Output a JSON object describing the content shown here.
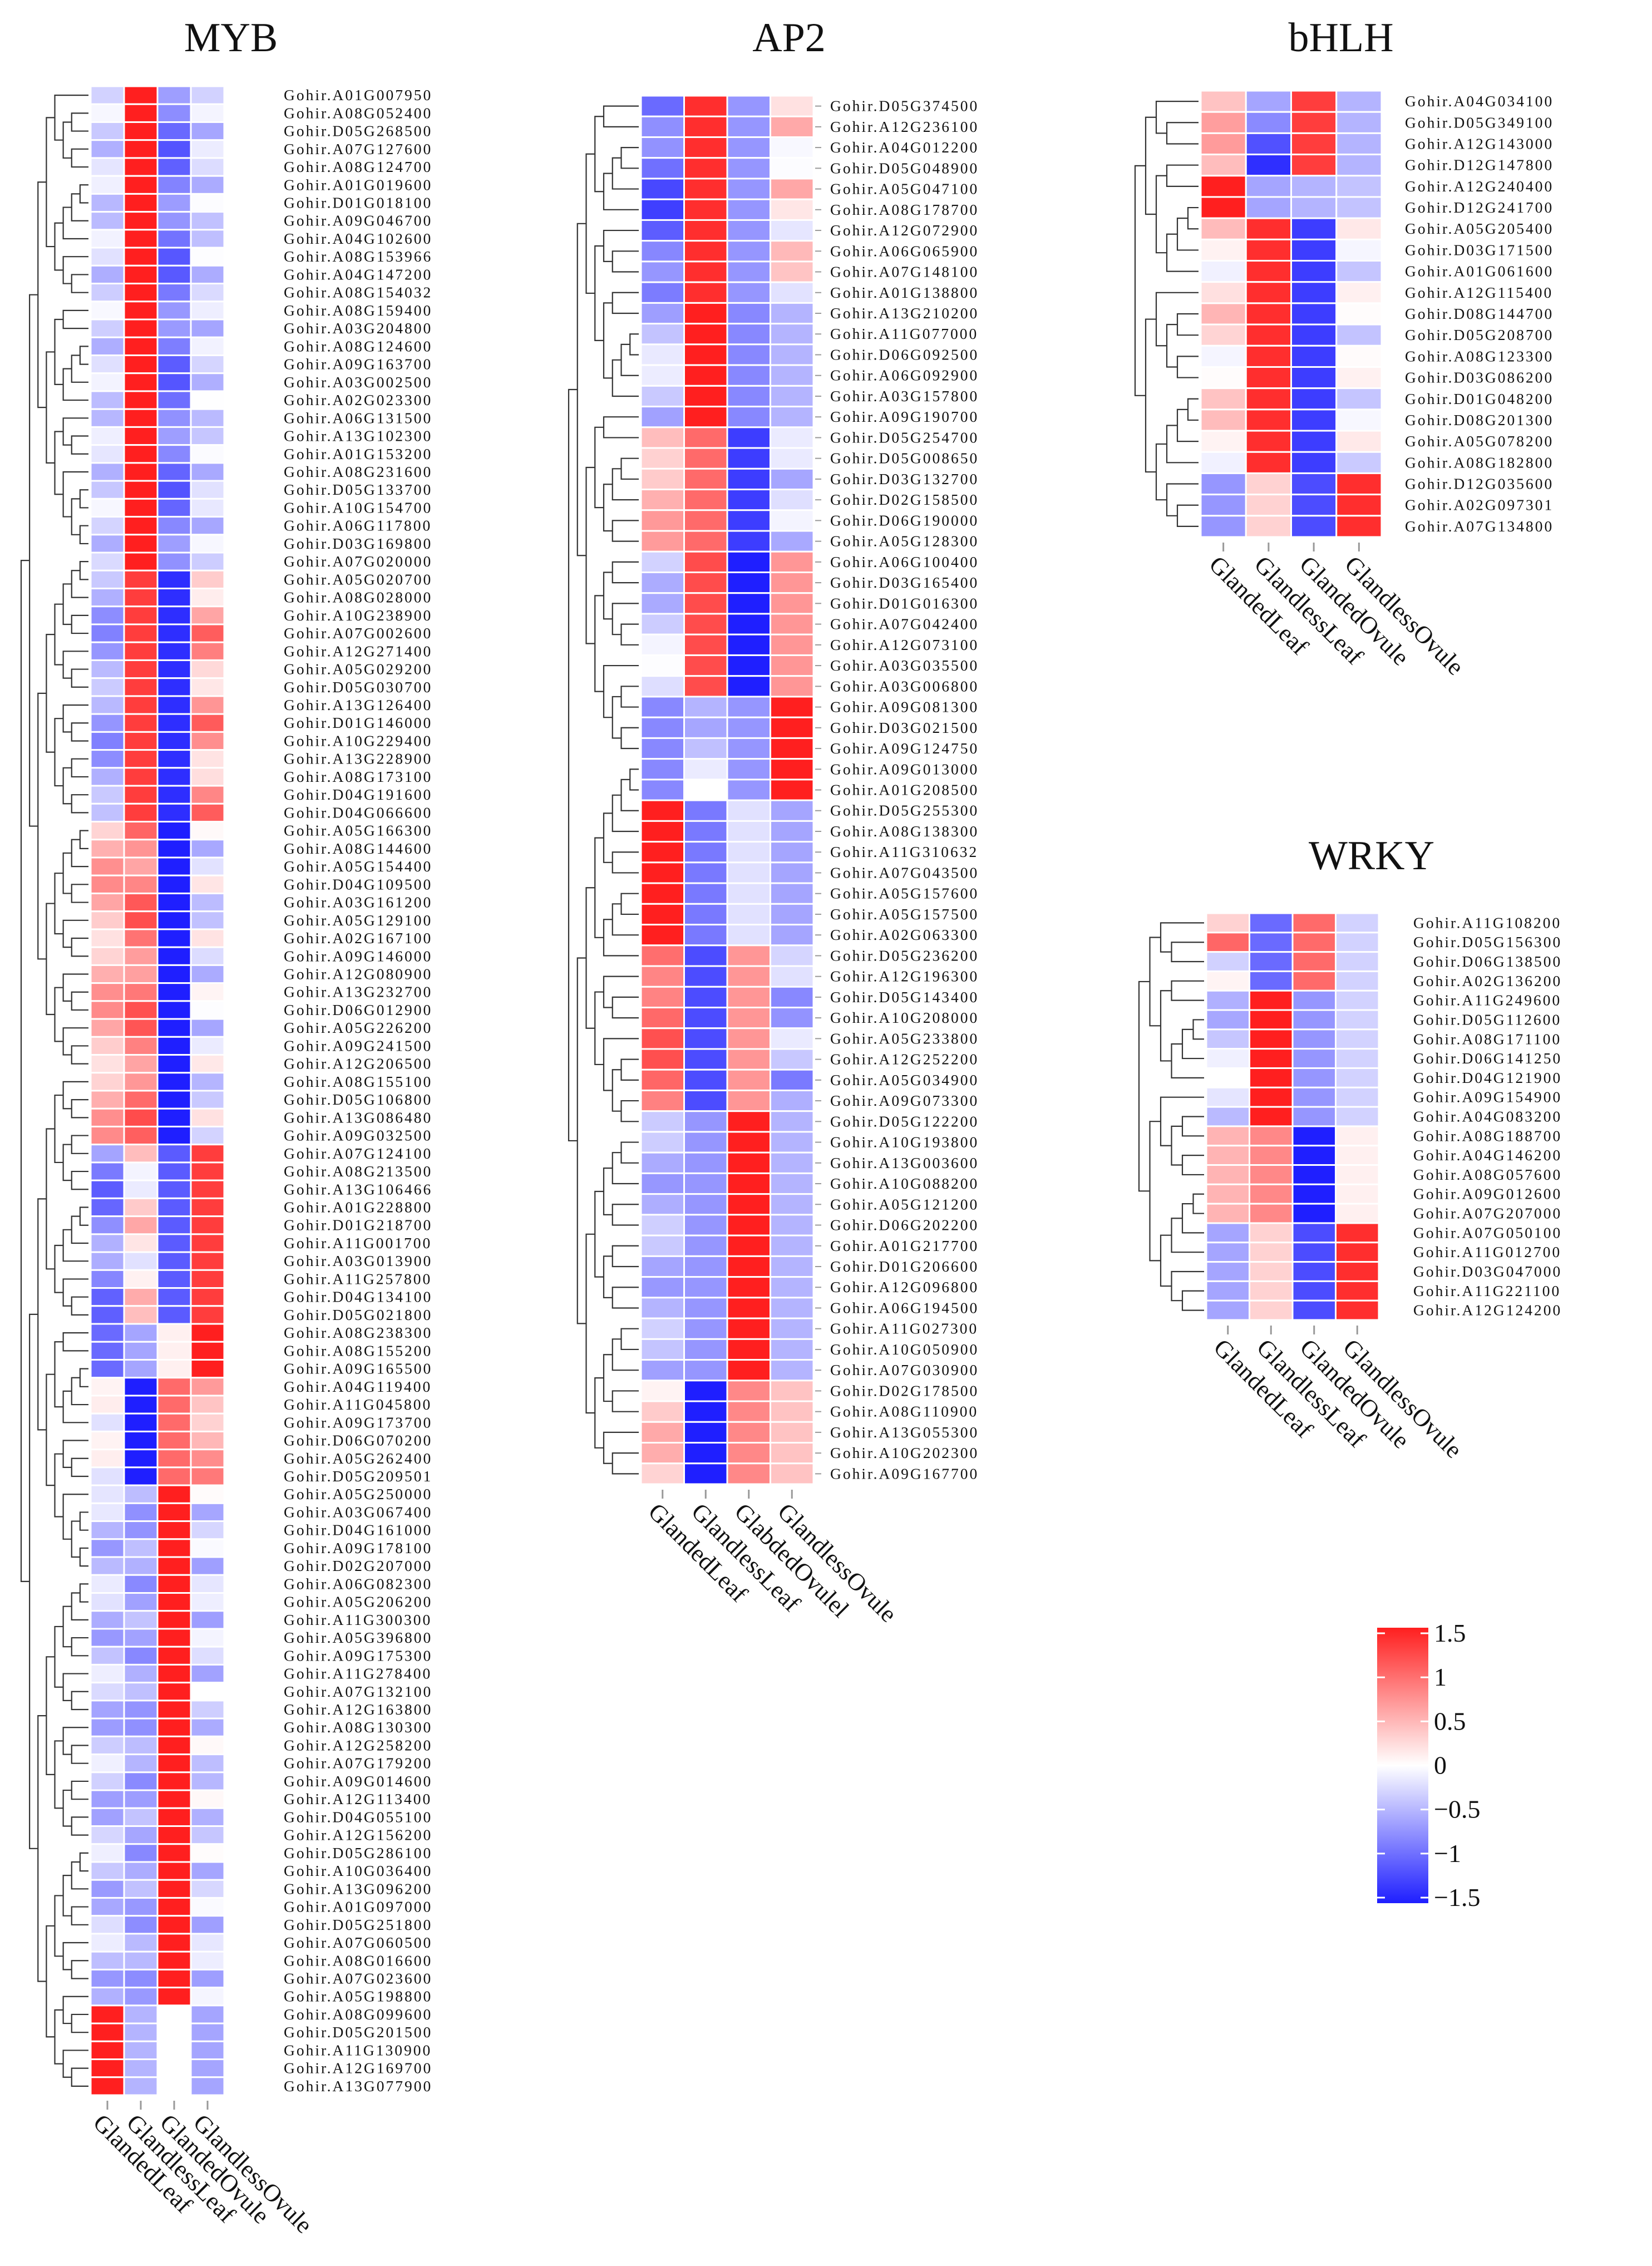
{
  "colors": {
    "low": "#1f1fff",
    "mid": "#ffffff",
    "high": "#ff1f1f",
    "cell_border": "#ffffff",
    "line": "#333333"
  },
  "chart_data": [
    {
      "type": "heatmap",
      "title": "MYB",
      "columns": [
        "GlandedLeaf",
        "GlandlessLeaf",
        "GlandedOvule",
        "GlandlessOvule"
      ],
      "rows": [
        "Gohir.A01G007950",
        "Gohir.A08G052400",
        "Gohir.D05G268500",
        "Gohir.A07G127600",
        "Gohir.A08G124700",
        "Gohir.A01G019600",
        "Gohir.D01G018100",
        "Gohir.A09G046700",
        "Gohir.A04G102600",
        "Gohir.A08G153966",
        "Gohir.A04G147200",
        "Gohir.A08G154032",
        "Gohir.A08G159400",
        "Gohir.A03G204800",
        "Gohir.A08G124600",
        "Gohir.A09G163700",
        "Gohir.A03G002500",
        "Gohir.A02G023300",
        "Gohir.A06G131500",
        "Gohir.A13G102300",
        "Gohir.A01G153200",
        "Gohir.A08G231600",
        "Gohir.D05G133700",
        "Gohir.A10G154700",
        "Gohir.A06G117800",
        "Gohir.D03G169800",
        "Gohir.A07G020000",
        "Gohir.A05G020700",
        "Gohir.A08G028000",
        "Gohir.A10G238900",
        "Gohir.A07G002600",
        "Gohir.A12G271400",
        "Gohir.A05G029200",
        "Gohir.D05G030700",
        "Gohir.A13G126400",
        "Gohir.D01G146000",
        "Gohir.A10G229400",
        "Gohir.A13G228900",
        "Gohir.A08G173100",
        "Gohir.D04G191600",
        "Gohir.D04G066600",
        "Gohir.A05G166300",
        "Gohir.A08G144600",
        "Gohir.A05G154400",
        "Gohir.D04G109500",
        "Gohir.A03G161200",
        "Gohir.A05G129100",
        "Gohir.A02G167100",
        "Gohir.A09G146000",
        "Gohir.A12G080900",
        "Gohir.A13G232700",
        "Gohir.D06G012900",
        "Gohir.A05G226200",
        "Gohir.A09G241500",
        "Gohir.A12G206500",
        "Gohir.A08G155100",
        "Gohir.D05G106800",
        "Gohir.A13G086480",
        "Gohir.A09G032500",
        "Gohir.A07G124100",
        "Gohir.A08G213500",
        "Gohir.A13G106466",
        "Gohir.A01G228800",
        "Gohir.D01G218700",
        "Gohir.A11G001700",
        "Gohir.A03G013900",
        "Gohir.A11G257800",
        "Gohir.D04G134100",
        "Gohir.D05G021800",
        "Gohir.A08G238300",
        "Gohir.A08G155200",
        "Gohir.A09G165500",
        "Gohir.A04G119400",
        "Gohir.A11G045800",
        "Gohir.A09G173700",
        "Gohir.D06G070200",
        "Gohir.A05G262400",
        "Gohir.D05G209501",
        "Gohir.A05G250000",
        "Gohir.A03G067400",
        "Gohir.D04G161000",
        "Gohir.A09G178100",
        "Gohir.D02G207000",
        "Gohir.A06G082300",
        "Gohir.A05G206200",
        "Gohir.A11G300300",
        "Gohir.A05G396800",
        "Gohir.A09G175300",
        "Gohir.A11G278400",
        "Gohir.A07G132100",
        "Gohir.A12G163800",
        "Gohir.A08G130300",
        "Gohir.A12G258200",
        "Gohir.A07G179200",
        "Gohir.A09G014600",
        "Gohir.A12G113400",
        "Gohir.D04G055100",
        "Gohir.A12G156200",
        "Gohir.D05G286100",
        "Gohir.A10G036400",
        "Gohir.A13G096200",
        "Gohir.A01G097000",
        "Gohir.D05G251800",
        "Gohir.A07G060500",
        "Gohir.A08G016600",
        "Gohir.A07G023600",
        "Gohir.A05G198800",
        "Gohir.A08G099600",
        "Gohir.D05G201500",
        "Gohir.A11G130900",
        "Gohir.A12G169700",
        "Gohir.A13G077900"
      ]
    },
    {
      "type": "heatmap",
      "title": "AP2",
      "columns": [
        "GlandedLeaf",
        "GlandlessLeaf",
        "GlabdedOvulel",
        "GlandlessOvule"
      ],
      "rows": [
        "Gohir.D05G374500",
        "Gohir.A12G236100",
        "Gohir.A04G012200",
        "Gohir.D05G048900",
        "Gohir.A05G047100",
        "Gohir.A08G178700",
        "Gohir.A12G072900",
        "Gohir.A06G065900",
        "Gohir.A07G148100",
        "Gohir.A01G138800",
        "Gohir.A13G210200",
        "Gohir.A11G077000",
        "Gohir.D06G092500",
        "Gohir.A06G092900",
        "Gohir.A03G157800",
        "Gohir.A09G190700",
        "Gohir.D05G254700",
        "Gohir.D05G008650",
        "Gohir.D03G132700",
        "Gohir.D02G158500",
        "Gohir.D06G190000",
        "Gohir.A05G128300",
        "Gohir.A06G100400",
        "Gohir.D03G165400",
        "Gohir.D01G016300",
        "Gohir.A07G042400",
        "Gohir.A12G073100",
        "Gohir.A03G035500",
        "Gohir.A03G006800",
        "Gohir.A09G081300",
        "Gohir.D03G021500",
        "Gohir.A09G124750",
        "Gohir.A09G013000",
        "Gohir.A01G208500",
        "Gohir.D05G255300",
        "Gohir.A08G138300",
        "Gohir.A11G310632",
        "Gohir.A07G043500",
        "Gohir.A05G157600",
        "Gohir.A05G157500",
        "Gohir.A02G063300",
        "Gohir.D05G236200",
        "Gohir.A12G196300",
        "Gohir.D05G143400",
        "Gohir.A10G208000",
        "Gohir.A05G233800",
        "Gohir.A12G252200",
        "Gohir.A05G034900",
        "Gohir.A09G073300",
        "Gohir.D05G122200",
        "Gohir.A10G193800",
        "Gohir.A13G003600",
        "Gohir.A10G088200",
        "Gohir.A05G121200",
        "Gohir.D06G202200",
        "Gohir.A01G217700",
        "Gohir.D01G206600",
        "Gohir.A12G096800",
        "Gohir.A06G194500",
        "Gohir.A11G027300",
        "Gohir.A10G050900",
        "Gohir.A07G030900",
        "Gohir.D02G178500",
        "Gohir.A08G110900",
        "Gohir.A13G055300",
        "Gohir.A10G202300",
        "Gohir.A09G167700"
      ]
    },
    {
      "type": "heatmap",
      "title": "bHLH",
      "columns": [
        "GlandedLeaf",
        "GlandlessLeaf",
        "GlandedOvule",
        "GlandlessOvule"
      ],
      "rows": [
        "Gohir.A04G034100",
        "Gohir.D05G349100",
        "Gohir.A12G143000",
        "Gohir.D12G147800",
        "Gohir.A12G240400",
        "Gohir.D12G241700",
        "Gohir.A05G205400",
        "Gohir.D03G171500",
        "Gohir.A01G061600",
        "Gohir.A12G115400",
        "Gohir.D08G144700",
        "Gohir.D05G208700",
        "Gohir.A08G123300",
        "Gohir.D03G086200",
        "Gohir.D01G048200",
        "Gohir.D08G201300",
        "Gohir.A05G078200",
        "Gohir.A08G182800",
        "Gohir.D12G035600",
        "Gohir.A02G097301",
        "Gohir.A07G134800"
      ]
    },
    {
      "type": "heatmap",
      "title": "WRKY",
      "columns": [
        "GlandedLeaf",
        "GlandlessLeaf",
        "GlandedOvule",
        "GlandlessOvule"
      ],
      "rows": [
        "Gohir.A11G108200",
        "Gohir.D05G156300",
        "Gohir.D06G138500",
        "Gohir.A02G136200",
        "Gohir.A11G249600",
        "Gohir.D05G112600",
        "Gohir.A08G171100",
        "Gohir.D06G141250",
        "Gohir.D04G121900",
        "Gohir.A09G154900",
        "Gohir.A04G083200",
        "Gohir.A08G188700",
        "Gohir.A04G146200",
        "Gohir.A08G057600",
        "Gohir.A09G012600",
        "Gohir.A07G207000",
        "Gohir.A07G050100",
        "Gohir.A11G012700",
        "Gohir.D03G047000",
        "Gohir.A11G221100",
        "Gohir.A12G124200"
      ]
    }
  ],
  "legend": {
    "ticks": [
      "1.5",
      "1",
      "0.5",
      "0",
      "−0.5",
      "−1",
      "−1.5"
    ],
    "min": -1.5,
    "max": 1.5
  }
}
